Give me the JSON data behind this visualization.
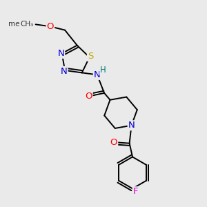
{
  "bg_color": "#eaeaea",
  "bond_color": "#000000",
  "atom_colors": {
    "N": "#0000cc",
    "O": "#ff0000",
    "S": "#bbaa00",
    "F": "#dd00dd",
    "H": "#007777",
    "C": "#000000"
  },
  "lw": 1.4,
  "fs": 9.5
}
